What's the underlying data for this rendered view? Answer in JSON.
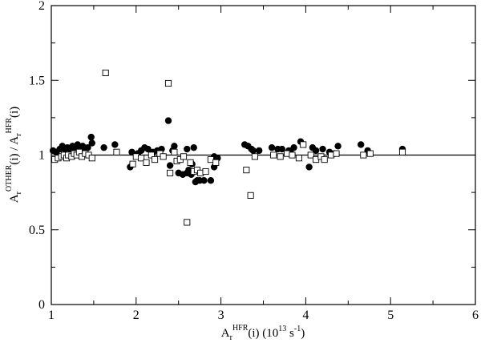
{
  "chart_data": {
    "type": "scatter",
    "xlim": [
      1,
      6
    ],
    "ylim": [
      0,
      2
    ],
    "xticks": [
      1,
      2,
      3,
      4,
      5,
      6
    ],
    "yticks": [
      0,
      0.5,
      1,
      1.5,
      2
    ],
    "xtick_labels": [
      "1",
      "2",
      "3",
      "4",
      "5",
      "6"
    ],
    "ytick_labels": [
      "0",
      "0.5",
      "1",
      "1.5",
      "2"
    ],
    "xlabel": {
      "base": "A",
      "sub": "r",
      "sup": "HFR",
      "mid": "(i) (10",
      "exp": "13",
      "unit": " s",
      "unit_exp": "-1",
      "end": ")"
    },
    "ylabel": {
      "base1": "A",
      "sub1": "r",
      "sup1": "OTHER",
      "mid": "(i) / A",
      "sub2": "r",
      "sup2": "HFR",
      "end": "(i)"
    },
    "reference_line": 1,
    "grid": false,
    "legend": "none",
    "series": [
      {
        "marker": "filled-circle",
        "x": [
          1.02,
          1.06,
          1.1,
          1.13,
          1.16,
          1.19,
          1.22,
          1.25,
          1.28,
          1.31,
          1.34,
          1.37,
          1.4,
          1.43,
          1.47,
          1.48,
          1.62,
          1.75,
          1.93,
          1.95,
          2.02,
          2.06,
          2.1,
          2.14,
          2.2,
          2.25,
          2.3,
          2.38,
          2.4,
          2.45,
          2.5,
          2.55,
          2.6,
          2.62,
          2.65,
          2.7,
          2.72,
          2.75,
          2.8,
          2.88,
          2.92,
          2.96,
          3.28,
          3.32,
          3.36,
          3.45,
          3.6,
          3.67,
          3.72,
          3.8,
          3.86,
          3.94,
          4.04,
          4.08,
          4.12,
          4.2,
          4.28,
          4.38,
          4.65,
          4.73,
          5.14,
          1.21,
          1.29,
          1.36,
          2.43,
          2.6,
          2.68,
          2.66,
          2.92,
          3.38,
          3.82,
          4.34
        ],
        "y": [
          1.03,
          1.02,
          1.04,
          1.06,
          1.04,
          1.05,
          1.04,
          1.06,
          1.05,
          1.07,
          1.04,
          1.06,
          1.03,
          1.05,
          1.12,
          1.08,
          1.05,
          1.07,
          0.92,
          1.02,
          1.01,
          1.03,
          1.05,
          1.04,
          1.02,
          1.03,
          1.04,
          1.23,
          0.93,
          1.06,
          0.88,
          0.87,
          0.88,
          0.9,
          0.87,
          0.82,
          0.83,
          0.83,
          0.83,
          0.83,
          0.92,
          0.98,
          1.07,
          1.06,
          1.04,
          1.03,
          1.05,
          1.04,
          1.04,
          1.03,
          1.05,
          1.09,
          0.92,
          1.05,
          1.03,
          1.04,
          1.02,
          1.06,
          1.07,
          1.03,
          1.04,
          1.0,
          1.02,
          1.0,
          1.03,
          1.04,
          1.05,
          0.94,
          0.99,
          1.03,
          1.02,
          1.01
        ]
      },
      {
        "marker": "open-square",
        "x": [
          1.04,
          1.08,
          1.12,
          1.15,
          1.18,
          1.2,
          1.24,
          1.27,
          1.3,
          1.33,
          1.36,
          1.4,
          1.44,
          1.48,
          1.64,
          1.77,
          1.96,
          2.0,
          2.06,
          2.12,
          2.18,
          2.22,
          2.28,
          2.32,
          2.38,
          2.4,
          2.45,
          2.48,
          2.52,
          2.56,
          2.6,
          2.64,
          2.68,
          2.72,
          2.76,
          2.82,
          2.88,
          2.94,
          3.3,
          3.35,
          3.4,
          3.62,
          3.7,
          3.78,
          3.84,
          3.92,
          3.97,
          4.06,
          4.12,
          4.18,
          4.22,
          4.3,
          4.36,
          4.68,
          4.76,
          5.14
        ],
        "y": [
          0.97,
          0.98,
          0.99,
          1.0,
          0.98,
          1.0,
          0.99,
          1.01,
          1.0,
          1.02,
          0.99,
          1.01,
          1.0,
          0.98,
          1.55,
          1.02,
          0.94,
          0.99,
          0.98,
          0.95,
          1.0,
          0.97,
          1.01,
          0.99,
          1.48,
          0.88,
          1.02,
          0.96,
          0.97,
          0.99,
          0.55,
          0.95,
          0.89,
          0.9,
          0.88,
          0.89,
          0.97,
          0.95,
          0.9,
          0.73,
          0.99,
          1.0,
          0.99,
          1.01,
          1.0,
          0.98,
          1.07,
          1.0,
          0.97,
          0.99,
          0.97,
          1.0,
          1.01,
          1.0,
          1.01,
          1.02
        ]
      }
    ]
  }
}
